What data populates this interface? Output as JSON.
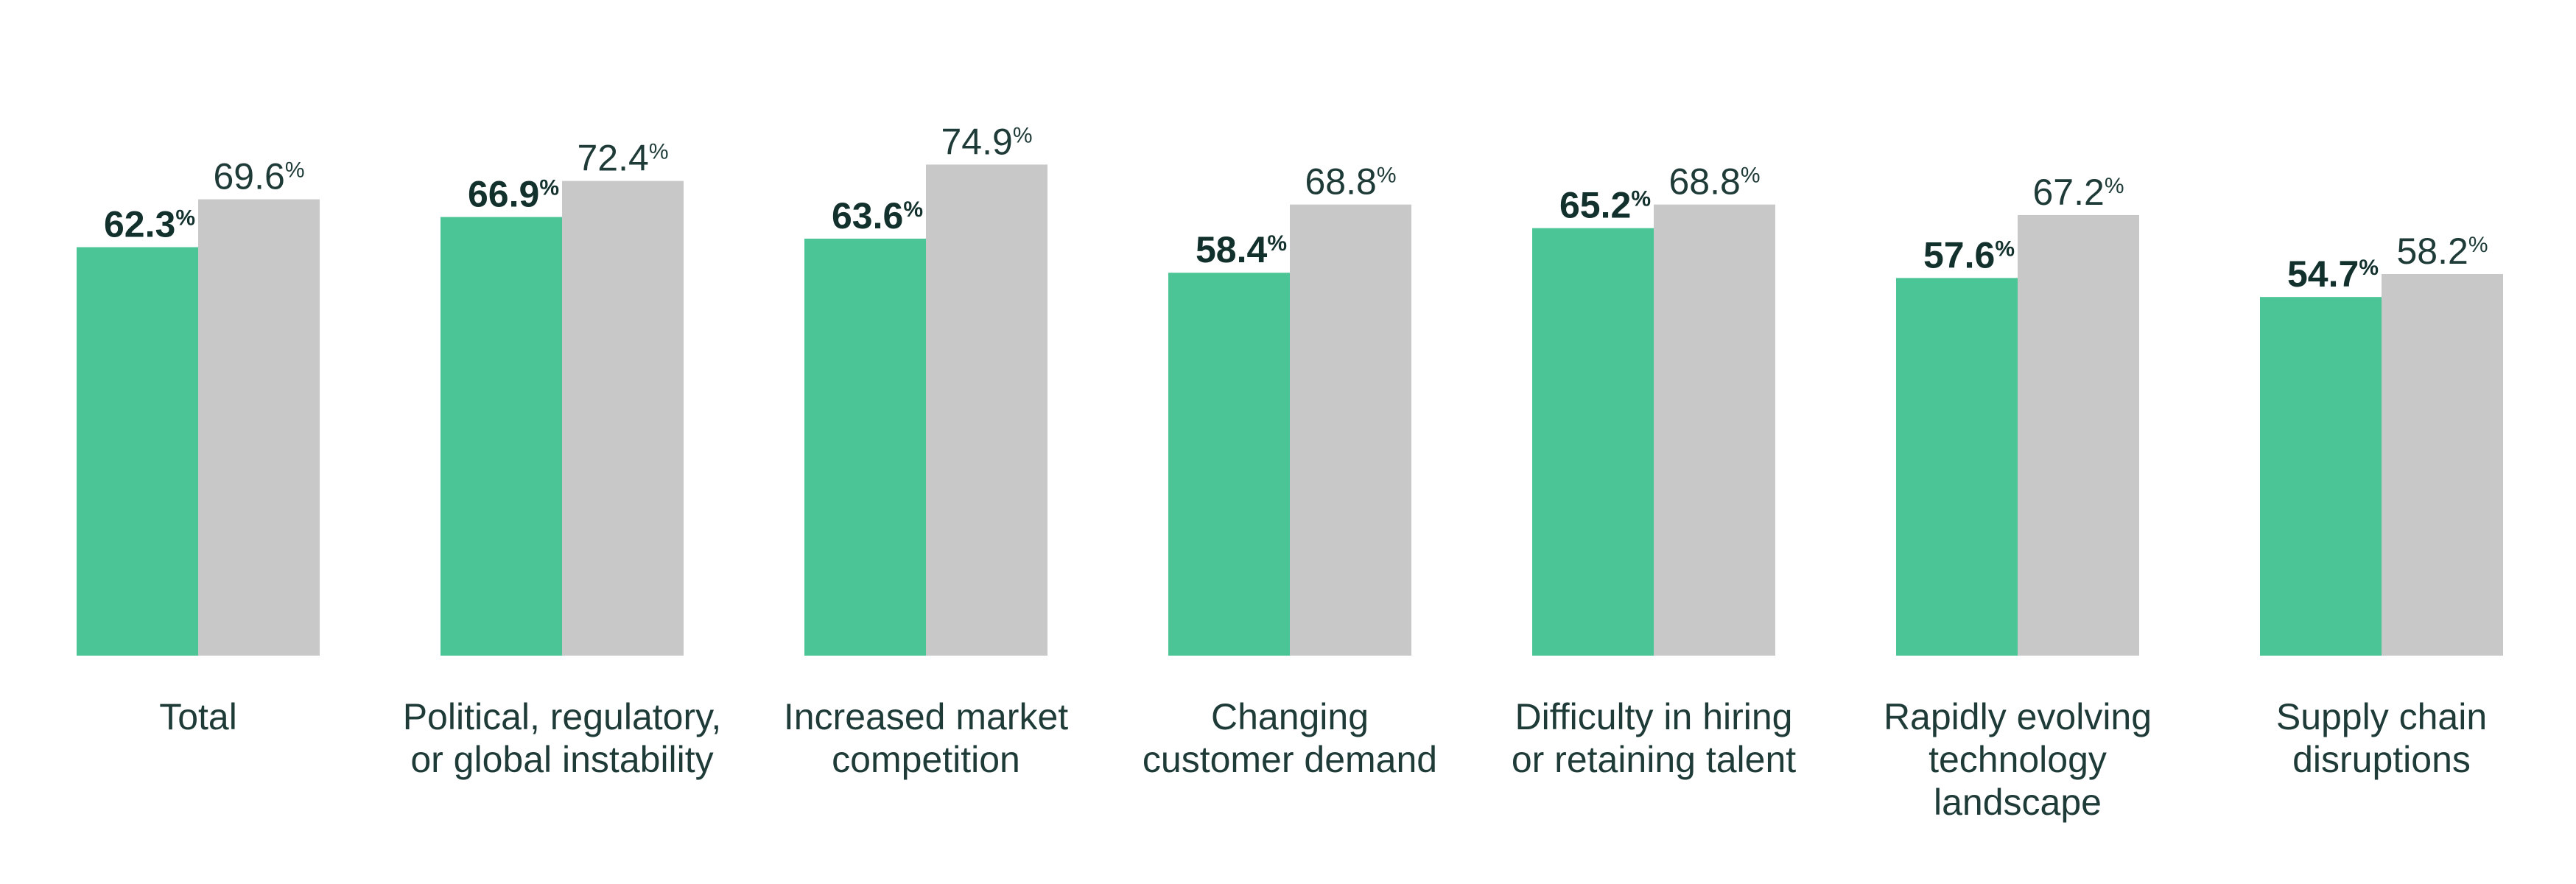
{
  "chart_data": {
    "type": "bar",
    "categories": [
      [
        "Total"
      ],
      [
        "Political, regulatory,",
        "or global instability"
      ],
      [
        "Increased market",
        "competition"
      ],
      [
        "Changing",
        "customer demand"
      ],
      [
        "Difficulty in hiring",
        "or retaining talent"
      ],
      [
        "Rapidly evolving",
        "technology",
        "landscape"
      ],
      [
        "Supply chain",
        "disruptions"
      ]
    ],
    "series": [
      {
        "values": [
          62.3,
          66.9,
          63.6,
          58.4,
          65.2,
          57.6,
          54.7
        ],
        "labels": [
          "62.3",
          "66.9",
          "63.6",
          "58.4",
          "65.2",
          "57.6",
          "54.7"
        ],
        "color": "#4bc595",
        "label_color": "#12302c",
        "label_weight": "bold"
      },
      {
        "values": [
          69.6,
          72.4,
          74.9,
          68.8,
          68.8,
          67.2,
          58.2
        ],
        "labels": [
          "69.6",
          "72.4",
          "74.9",
          "68.8",
          "68.8",
          "67.2",
          "58.2"
        ],
        "color": "#c8c8c8",
        "label_color": "#1e3b38",
        "label_weight": "normal"
      }
    ],
    "unit_suffix": "%",
    "ylim": [
      0,
      100
    ],
    "grid": false,
    "legend": "none",
    "title": "",
    "xlabel": "",
    "ylabel": ""
  }
}
